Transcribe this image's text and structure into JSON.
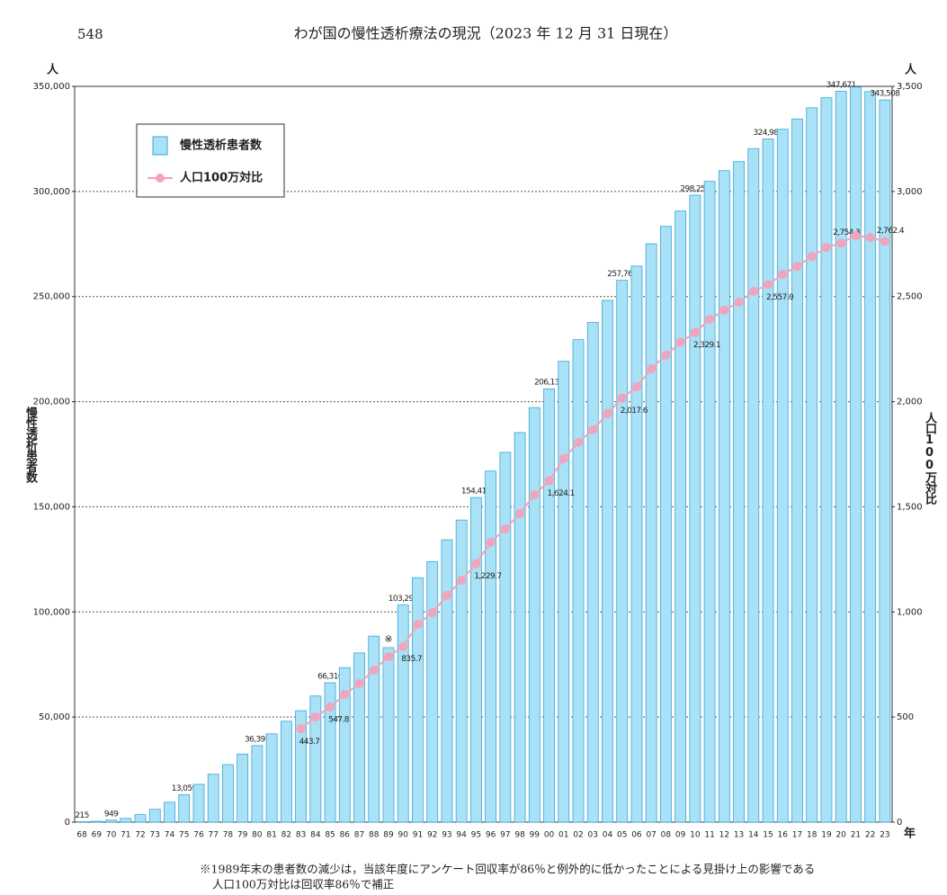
{
  "page_number": "548",
  "chart_data": {
    "type": "combo",
    "title": "わが国の慢性透析療法の現況（2023 年 12 月 31 日現在）",
    "ylabel": "慢性透析患者数",
    "y2label": "人口100万対比",
    "yunit": "人",
    "y2unit": "人",
    "xlabel": "年",
    "categories": [
      "68",
      "69",
      "70",
      "71",
      "72",
      "73",
      "74",
      "75",
      "76",
      "77",
      "78",
      "79",
      "80",
      "81",
      "82",
      "83",
      "84",
      "85",
      "86",
      "87",
      "88",
      "89",
      "90",
      "91",
      "92",
      "93",
      "94",
      "95",
      "96",
      "97",
      "98",
      "99",
      "00",
      "01",
      "02",
      "03",
      "04",
      "05",
      "06",
      "07",
      "08",
      "09",
      "10",
      "11",
      "12",
      "13",
      "14",
      "15",
      "16",
      "17",
      "18",
      "19",
      "20",
      "21",
      "22",
      "23"
    ],
    "series": [
      {
        "name": "慢性透析患者数",
        "type": "bar",
        "color": "#a9e1f6",
        "edge": "#39a7d6",
        "values": [
          215,
          400,
          949,
          1800,
          3600,
          6100,
          9500,
          13059,
          18000,
          22800,
          27400,
          32400,
          36397,
          42000,
          48000,
          53000,
          60000,
          66310,
          73500,
          80500,
          88500,
          83000,
          103296,
          116300,
          123900,
          134300,
          143700,
          154413,
          167000,
          175900,
          185300,
          197200,
          206134,
          219200,
          229500,
          237700,
          248200,
          257765,
          264500,
          275100,
          283400,
          290700,
          298252,
          304800,
          309900,
          314200,
          320400,
          324986,
          329600,
          334500,
          339800,
          344600,
          347671,
          349700,
          347500,
          343508
        ],
        "value_labels": [
          "215",
          null,
          "949",
          null,
          null,
          null,
          null,
          "13,059",
          null,
          null,
          null,
          null,
          "36,397",
          null,
          null,
          null,
          null,
          "66,310",
          null,
          null,
          null,
          null,
          "103,296",
          null,
          null,
          null,
          null,
          "154,413",
          null,
          null,
          null,
          null,
          "206,134",
          null,
          null,
          null,
          null,
          "257,765",
          null,
          null,
          null,
          null,
          "298,252",
          null,
          null,
          null,
          null,
          "324,986",
          null,
          null,
          null,
          null,
          "347,671",
          null,
          null,
          "343,508"
        ]
      },
      {
        "name": "人口100万対比",
        "type": "line",
        "axis": "y2",
        "color": "#f3a3bb",
        "values": [
          null,
          null,
          null,
          null,
          null,
          null,
          null,
          null,
          null,
          null,
          null,
          null,
          null,
          null,
          null,
          443.7,
          500,
          547.8,
          607,
          659,
          723,
          787,
          835.7,
          941,
          997,
          1078,
          1151,
          1229.7,
          1331,
          1395,
          1468,
          1557,
          1624.1,
          1729,
          1806,
          1866,
          1943,
          2017.6,
          2071,
          2157,
          2221,
          2283,
          2329.1,
          2392,
          2435,
          2473,
          2525,
          2557,
          2606,
          2644,
          2691,
          2734,
          2754.3,
          2790,
          2781,
          2762.4
        ],
        "value_labels": [
          null,
          null,
          null,
          null,
          null,
          null,
          null,
          null,
          null,
          null,
          null,
          null,
          null,
          null,
          null,
          "443.7",
          null,
          "547.8",
          null,
          null,
          null,
          null,
          "835.7",
          null,
          null,
          null,
          null,
          "1,229.7",
          null,
          null,
          null,
          null,
          "1,624.1",
          null,
          null,
          null,
          null,
          "2,017.6",
          null,
          null,
          null,
          null,
          "2,329.1",
          null,
          null,
          null,
          null,
          "2,557.0",
          null,
          null,
          null,
          null,
          "2,754.3",
          null,
          null,
          "2,762.4"
        ]
      }
    ],
    "ylim": [
      0,
      350000
    ],
    "yticks": [
      0,
      {
        "value": 50000,
        "label": "50,000"
      },
      {
        "value": 100000,
        "label": "100,000"
      },
      {
        "value": 150000,
        "label": "150,000"
      },
      {
        "value": 200000,
        "label": "200,000"
      },
      {
        "value": 250000,
        "label": "250,000"
      },
      {
        "value": 300000,
        "label": "300,000"
      },
      {
        "value": 350000,
        "label": "350,000"
      }
    ],
    "y2lim": [
      0,
      3500
    ],
    "y2ticks": [
      0,
      500,
      {
        "value": 1000,
        "label": "1,000"
      },
      {
        "value": 1500,
        "label": "1,500"
      },
      {
        "value": 2000,
        "label": "2,000"
      },
      {
        "value": 2500,
        "label": "2,500"
      },
      {
        "value": 3000,
        "label": "3,000"
      },
      {
        "value": 3500,
        "label": "3,500"
      }
    ],
    "grid": true,
    "legend": "upper left",
    "annotations": [
      {
        "text": "※",
        "x": "89"
      }
    ],
    "footnote": [
      "※1989年末の患者数の減少は，当該年度にアンケート回収率が86％と例外的に低かったことによる見掛け上の影響である",
      "人口100万対比は回収率86％で補正"
    ]
  }
}
